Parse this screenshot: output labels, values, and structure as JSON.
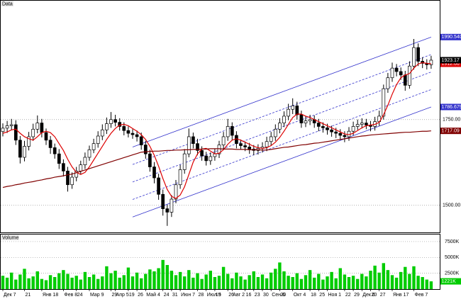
{
  "chart_data": {
    "type": "candlestick",
    "title": "Data",
    "volume_title": "Volume",
    "categories": [
      "Дек 7",
      null,
      null,
      null,
      null,
      "21",
      null,
      null,
      null,
      "Янв 18",
      null,
      null,
      null,
      null,
      "Фев 8",
      null,
      null,
      "24",
      null,
      null,
      "Мар 9",
      null,
      null,
      null,
      null,
      "29",
      "Апр 5",
      null,
      null,
      "19",
      null,
      "26",
      null,
      "Май 4",
      null,
      null,
      null,
      "24",
      null,
      "31",
      null,
      "Июн 7",
      null,
      null,
      null,
      "28",
      null,
      "Июл 5",
      null,
      "19",
      null,
      null,
      "26",
      "Авг 2",
      null,
      null,
      "16",
      null,
      "23",
      null,
      "30",
      null,
      "Сен 6",
      null,
      "20",
      null,
      null,
      "Окт 4",
      null,
      null,
      null,
      "18",
      null,
      "25",
      null,
      "Ноя 1",
      null,
      null,
      null,
      "22",
      null,
      "29",
      null,
      "Дек 6",
      null,
      "20",
      null,
      "27",
      null,
      null,
      "Янв 17",
      null,
      null,
      null,
      null,
      "Фев 7",
      null,
      null,
      null,
      null
    ],
    "open": [
      1715,
      1725,
      1732,
      1735,
      1690,
      1640,
      1672,
      1700,
      1722,
      1740,
      1712,
      1690,
      1668,
      1650,
      1622,
      1600,
      1560,
      1582,
      1600,
      1618,
      1640,
      1662,
      1680,
      1702,
      1720,
      1738,
      1750,
      1742,
      1730,
      1718,
      1710,
      1706,
      1700,
      1676,
      1650,
      1612,
      1580,
      1532,
      1490,
      1480,
      1518,
      1560,
      1604,
      1650,
      1700,
      1680,
      1660,
      1644,
      1630,
      1642,
      1650,
      1676,
      1700,
      1730,
      1704,
      1680,
      1674,
      1670,
      1664,
      1660,
      1666,
      1670,
      1686,
      1700,
      1722,
      1740,
      1760,
      1780,
      1790,
      1764,
      1740,
      1746,
      1750,
      1740,
      1730,
      1726,
      1720,
      1714,
      1710,
      1704,
      1700,
      1716,
      1730,
      1736,
      1740,
      1734,
      1730,
      1744,
      1760,
      1840,
      1872,
      1900,
      1890,
      1880,
      1850,
      1906,
      1960,
      1920,
      1914,
      1910
    ],
    "high": [
      1739,
      1746,
      1752,
      1748,
      1702,
      1688,
      1714,
      1738,
      1762,
      1752,
      1724,
      1702,
      1680,
      1664,
      1634,
      1612,
      1596,
      1612,
      1630,
      1654,
      1674,
      1694,
      1716,
      1736,
      1756,
      1772,
      1764,
      1754,
      1742,
      1730,
      1722,
      1718,
      1712,
      1688,
      1662,
      1626,
      1592,
      1546,
      1502,
      1530,
      1574,
      1618,
      1664,
      1724,
      1712,
      1694,
      1672,
      1656,
      1654,
      1664,
      1688,
      1714,
      1752,
      1742,
      1716,
      1692,
      1686,
      1682,
      1676,
      1678,
      1684,
      1700,
      1714,
      1736,
      1754,
      1774,
      1796,
      1812,
      1802,
      1776,
      1760,
      1764,
      1762,
      1752,
      1742,
      1738,
      1732,
      1726,
      1722,
      1716,
      1728,
      1744,
      1750,
      1754,
      1752,
      1746,
      1758,
      1776,
      1852,
      1886,
      1916,
      1912,
      1902,
      1892,
      1920,
      1985,
      1972,
      1932,
      1926,
      1936
    ],
    "low": [
      1701,
      1711,
      1720,
      1676,
      1622,
      1628,
      1660,
      1688,
      1710,
      1698,
      1676,
      1650,
      1636,
      1606,
      1584,
      1540,
      1548,
      1570,
      1590,
      1606,
      1630,
      1652,
      1668,
      1690,
      1708,
      1726,
      1730,
      1718,
      1704,
      1698,
      1694,
      1686,
      1662,
      1636,
      1598,
      1564,
      1516,
      1470,
      1440,
      1466,
      1506,
      1548,
      1592,
      1640,
      1666,
      1646,
      1630,
      1616,
      1618,
      1630,
      1638,
      1664,
      1688,
      1690,
      1666,
      1662,
      1658,
      1650,
      1646,
      1648,
      1654,
      1658,
      1674,
      1688,
      1710,
      1728,
      1748,
      1766,
      1750,
      1726,
      1728,
      1734,
      1726,
      1716,
      1712,
      1706,
      1700,
      1696,
      1690,
      1684,
      1688,
      1704,
      1720,
      1724,
      1722,
      1716,
      1718,
      1732,
      1750,
      1828,
      1860,
      1876,
      1866,
      1834,
      1840,
      1896,
      1906,
      1900,
      1896,
      1898
    ],
    "close": [
      1725,
      1732,
      1735,
      1690,
      1640,
      1672,
      1700,
      1722,
      1740,
      1712,
      1690,
      1668,
      1650,
      1622,
      1600,
      1560,
      1582,
      1600,
      1618,
      1640,
      1662,
      1680,
      1702,
      1720,
      1738,
      1750,
      1742,
      1730,
      1718,
      1710,
      1706,
      1700,
      1676,
      1650,
      1612,
      1580,
      1532,
      1490,
      1480,
      1518,
      1560,
      1604,
      1650,
      1700,
      1680,
      1660,
      1644,
      1630,
      1642,
      1650,
      1676,
      1700,
      1730,
      1704,
      1680,
      1674,
      1670,
      1664,
      1660,
      1666,
      1670,
      1686,
      1700,
      1722,
      1740,
      1760,
      1780,
      1790,
      1764,
      1740,
      1746,
      1750,
      1740,
      1730,
      1726,
      1720,
      1714,
      1710,
      1704,
      1700,
      1716,
      1730,
      1736,
      1740,
      1734,
      1730,
      1744,
      1760,
      1840,
      1872,
      1900,
      1890,
      1880,
      1850,
      1906,
      1960,
      1920,
      1914,
      1910,
      1923.17
    ],
    "close_label": "1923.17",
    "candle_color": "#000000",
    "ylim": [
      1421,
      2078
    ],
    "yticks": [
      {
        "value": 1500,
        "label": "1500.00"
      },
      {
        "value": 1750,
        "label": "1750.00"
      }
    ],
    "grid": true,
    "lines": [
      {
        "color": "#dd0000",
        "last_label": "1912.66",
        "values": [
          1710,
          1714,
          1720,
          1722,
          1710,
          1700,
          1694,
          1690,
          1700,
          1712,
          1716,
          1712,
          1700,
          1680,
          1660,
          1634,
          1612,
          1596,
          1590,
          1596,
          1612,
          1632,
          1652,
          1672,
          1692,
          1710,
          1724,
          1734,
          1736,
          1732,
          1724,
          1716,
          1706,
          1692,
          1672,
          1646,
          1614,
          1578,
          1546,
          1526,
          1520,
          1530,
          1554,
          1590,
          1626,
          1650,
          1664,
          1666,
          1658,
          1650,
          1652,
          1662,
          1678,
          1690,
          1694,
          1690,
          1684,
          1678,
          1672,
          1668,
          1666,
          1668,
          1674,
          1684,
          1698,
          1716,
          1736,
          1756,
          1766,
          1766,
          1760,
          1756,
          1750,
          1744,
          1738,
          1732,
          1726,
          1720,
          1714,
          1708,
          1706,
          1710,
          1718,
          1726,
          1732,
          1734,
          1736,
          1742,
          1764,
          1792,
          1824,
          1852,
          1872,
          1880,
          1884,
          1900,
          1912,
          1916,
          1914,
          1912.66
        ]
      },
      {
        "color": "#800000",
        "last_label": "1717.09",
        "values": [
          1552,
          1555,
          1557,
          1560,
          1562,
          1565,
          1567,
          1569,
          1572,
          1574,
          1577,
          1579,
          1582,
          1584,
          1586,
          1589,
          1591,
          1595,
          1599,
          1603,
          1607,
          1611,
          1615,
          1619,
          1623,
          1627,
          1631,
          1635,
          1639,
          1643,
          1647,
          1651,
          1655,
          1656,
          1657,
          1658,
          1658,
          1659,
          1660,
          1660,
          1661,
          1661,
          1662,
          1662,
          1663,
          1663,
          1664,
          1664,
          1665,
          1665,
          1665,
          1664,
          1664,
          1664,
          1663,
          1663,
          1663,
          1662,
          1662,
          1662,
          1661,
          1661,
          1663,
          1665,
          1667,
          1669,
          1670,
          1672,
          1674,
          1676,
          1677,
          1679,
          1681,
          1682,
          1684,
          1686,
          1688,
          1690,
          1692,
          1694,
          1696,
          1698,
          1700,
          1702,
          1703,
          1705,
          1706,
          1707,
          1708,
          1709,
          1710,
          1711,
          1712,
          1713,
          1713,
          1714,
          1715,
          1716,
          1716,
          1717.09
        ]
      }
    ],
    "channel": {
      "x": [
        30,
        99
      ],
      "color": "#3333cc",
      "lines": [
        {
          "values": [
            1670,
            1990.54
          ],
          "last_label": "1990.5400"
        },
        {
          "values": [
            1619,
            1939.6
          ],
          "dashed": true
        },
        {
          "values": [
            1568,
            1888.6
          ],
          "dashed": true
        },
        {
          "values": [
            1517,
            1837.6
          ],
          "dashed": true
        },
        {
          "values": [
            1466,
            1786.6794
          ],
          "last_label": "1786.6794"
        }
      ]
    },
    "volume": {
      "color": "#00cc00",
      "last_label": "1221K",
      "ylim": [
        0,
        8500
      ],
      "yticks": [
        {
          "value": 2500,
          "label": "2500K"
        },
        {
          "value": 5000,
          "label": "5000K"
        },
        {
          "value": 7500,
          "label": "7500K"
        }
      ],
      "values": [
        2100,
        1800,
        2600,
        1500,
        2300,
        3200,
        1700,
        2000,
        2800,
        1600,
        1400,
        2200,
        1900,
        2500,
        3000,
        2400,
        1800,
        2100,
        1500,
        2700,
        1900,
        2300,
        1600,
        2000,
        3600,
        2500,
        2900,
        1800,
        2200,
        3400,
        2000,
        2600,
        1700,
        2400,
        3100,
        2800,
        3300,
        4600,
        3800,
        2900,
        2200,
        2700,
        2000,
        3000,
        1800,
        2500,
        1600,
        2300,
        2900,
        1900,
        2100,
        3500,
        2400,
        1700,
        2600,
        2000,
        1500,
        2200,
        2800,
        1900,
        2300,
        1700,
        2600,
        3200,
        4200,
        2800,
        2100,
        1900,
        2500,
        1600,
        2200,
        3000,
        1800,
        2400,
        1500,
        2000,
        2700,
        1700,
        3300,
        2300,
        1900,
        2100,
        1600,
        2400,
        2000,
        2900,
        3700,
        2600,
        4100,
        3000,
        2200,
        1800,
        2700,
        3500,
        2400,
        3600,
        2100,
        1900,
        1500,
        1221
      ]
    }
  }
}
